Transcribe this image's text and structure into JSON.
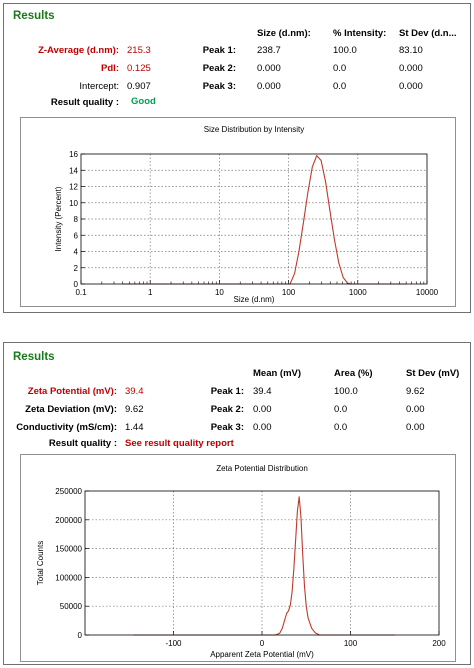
{
  "panel1": {
    "title": "Results",
    "headers": {
      "size": "Size (d.nm):",
      "intensity": "% Intensity:",
      "stdev": "St Dev (d.n..."
    },
    "z_average": {
      "label": "Z-Average (d.nm):",
      "value": "215.3"
    },
    "pdi": {
      "label": "PdI:",
      "value": "0.125"
    },
    "intercept": {
      "label": "Intercept:",
      "value": "0.907"
    },
    "quality": {
      "label": "Result quality :",
      "value": "Good"
    },
    "peaks": [
      {
        "label": "Peak 1:",
        "size": "238.7",
        "intensity": "100.0",
        "stdev": "83.10"
      },
      {
        "label": "Peak 2:",
        "size": "0.000",
        "intensity": "0.0",
        "stdev": "0.000"
      },
      {
        "label": "Peak 3:",
        "size": "0.000",
        "intensity": "0.0",
        "stdev": "0.000"
      }
    ]
  },
  "panel2": {
    "title": "Results",
    "headers": {
      "mean": "Mean (mV)",
      "area": "Area (%)",
      "stdev": "St Dev (mV)"
    },
    "zeta_potential": {
      "label": "Zeta Potential (mV):",
      "value": "39.4"
    },
    "zeta_deviation": {
      "label": "Zeta Deviation (mV):",
      "value": "9.62"
    },
    "conductivity": {
      "label": "Conductivity (mS/cm):",
      "value": "1.44"
    },
    "quality": {
      "label": "Result quality :",
      "value": "See result quality report"
    },
    "peaks": [
      {
        "label": "Peak 1:",
        "mean": "39.4",
        "area": "100.0",
        "stdev": "9.62"
      },
      {
        "label": "Peak 2:",
        "mean": "0.00",
        "area": "0.0",
        "stdev": "0.00"
      },
      {
        "label": "Peak 3:",
        "mean": "0.00",
        "area": "0.0",
        "stdev": "0.00"
      }
    ]
  },
  "colors": {
    "curve": "#c0392b",
    "results_title": "#1a7a1a",
    "highlight_red": "#c00000",
    "good_green": "#00a050"
  },
  "chart_data": [
    {
      "type": "line",
      "title": "Size Distribution by Intensity",
      "xlabel": "Size (d.nm)",
      "ylabel": "Intensity (Percent)",
      "x_scale": "log",
      "xlim": [
        0.1,
        10000
      ],
      "ylim": [
        0,
        16
      ],
      "x_ticks": [
        0.1,
        1,
        10,
        100,
        1000,
        10000
      ],
      "x_tick_labels": [
        "0.1",
        "1",
        "10",
        "100",
        "1000",
        "10000"
      ],
      "y_ticks": [
        0,
        2,
        4,
        6,
        8,
        10,
        12,
        14,
        16
      ],
      "grid": true,
      "series": [
        {
          "x": [
            0.4,
            1,
            10,
            80,
            105,
            122,
            141,
            164,
            190,
            220,
            255,
            295,
            342,
            396,
            459,
            531,
            615,
            712,
            800,
            1000,
            5000
          ],
          "y": [
            0,
            0,
            0,
            0,
            0,
            1.3,
            4.0,
            7.6,
            11.3,
            14.4,
            15.8,
            15.2,
            12.6,
            9.0,
            5.5,
            2.6,
            0.8,
            0.1,
            0,
            0,
            0
          ]
        }
      ]
    },
    {
      "type": "line",
      "title": "Zeta Potential Distribution",
      "xlabel": "Apparent Zeta Potential (mV)",
      "ylabel": "Total Counts",
      "xlim": [
        -200,
        200
      ],
      "ylim": [
        0,
        250000
      ],
      "x_ticks": [
        -100,
        0,
        100,
        200
      ],
      "y_ticks": [
        0,
        50000,
        100000,
        150000,
        200000,
        250000
      ],
      "grid": true,
      "series": [
        {
          "x": [
            -145,
            0,
            15,
            20,
            23,
            26,
            28,
            30,
            32,
            34,
            36,
            38,
            40,
            42,
            44,
            46,
            48,
            50,
            52,
            56,
            60,
            65,
            150
          ],
          "y": [
            0,
            0,
            0,
            3000,
            12000,
            28000,
            38000,
            42000,
            52000,
            75000,
            115000,
            165000,
            215000,
            240000,
            205000,
            140000,
            85000,
            50000,
            30000,
            12000,
            4000,
            0,
            0
          ]
        }
      ]
    }
  ]
}
